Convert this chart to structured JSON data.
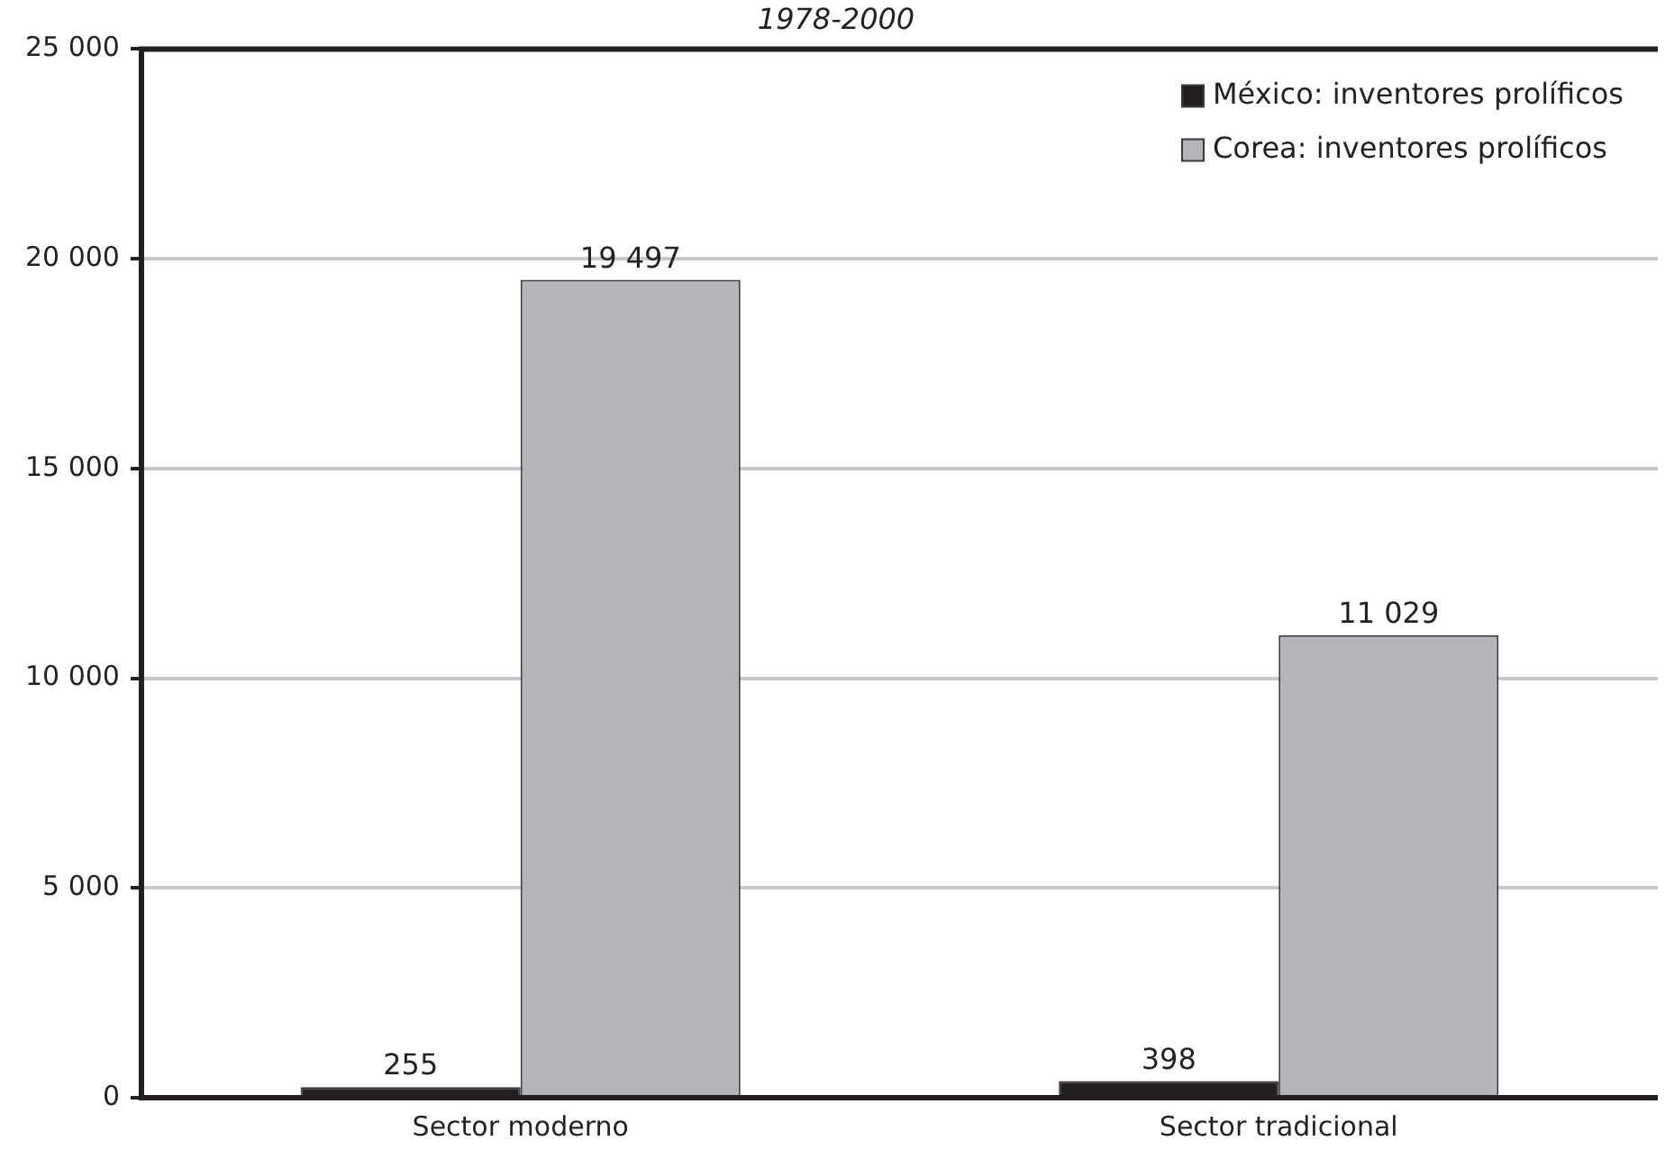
{
  "chart_data": {
    "type": "bar",
    "title": "1978-2000",
    "categories": [
      "Sector moderno",
      "Sector tradicional"
    ],
    "series": [
      {
        "name": "México: inventores prolíficos",
        "color": "#231f20",
        "values": [
          255,
          398
        ],
        "value_labels": [
          "255",
          "398"
        ]
      },
      {
        "name": "Corea: inventores prolíficos",
        "color": "#b4b4b9",
        "values": [
          19497,
          11029
        ],
        "value_labels": [
          "19 497",
          "11 029"
        ]
      }
    ],
    "ylim": [
      0,
      25000
    ],
    "yticks": [
      {
        "value": 0,
        "label": "0"
      },
      {
        "value": 5000,
        "label": "5 000"
      },
      {
        "value": 10000,
        "label": "10 000"
      },
      {
        "value": 15000,
        "label": "15 000"
      },
      {
        "value": 20000,
        "label": "20 000"
      },
      {
        "value": 25000,
        "label": "25 000"
      }
    ],
    "grid": "y",
    "legend": "top right"
  }
}
